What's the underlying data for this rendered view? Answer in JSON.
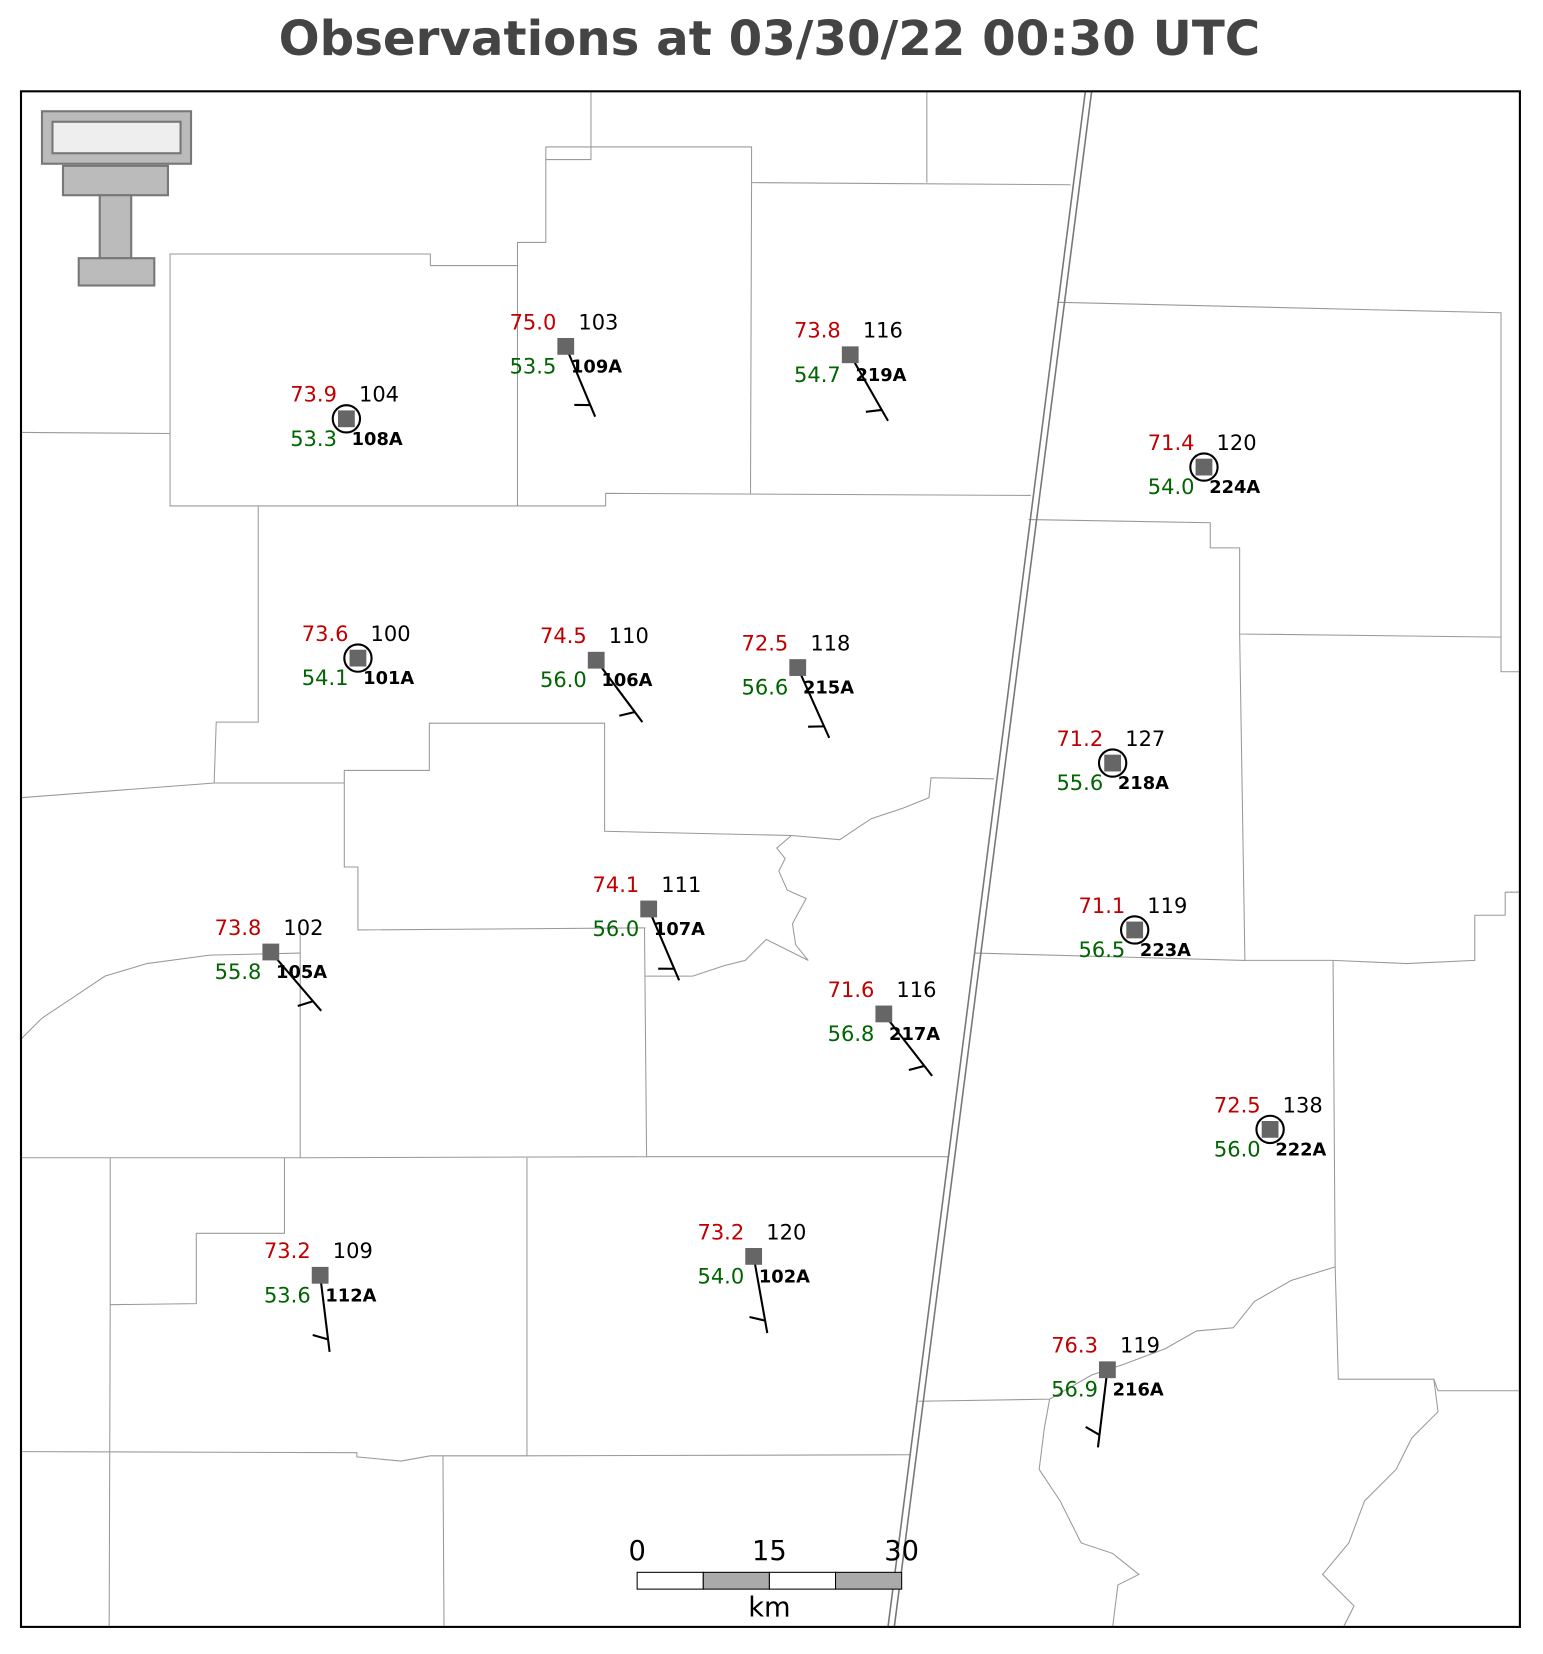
{
  "title": "Observations at 03/30/22 00:30 UTC",
  "stations": [
    {
      "id": "108A",
      "temperature": "73.9",
      "dewpoint": "53.3",
      "value": "104"
    },
    {
      "id": "109A",
      "temperature": "75.0",
      "dewpoint": "53.5",
      "value": "103"
    },
    {
      "id": "219A",
      "temperature": "73.8",
      "dewpoint": "54.7",
      "value": "116"
    },
    {
      "id": "224A",
      "temperature": "71.4",
      "dewpoint": "54.0",
      "value": "120"
    },
    {
      "id": "101A",
      "temperature": "73.6",
      "dewpoint": "54.1",
      "value": "100"
    },
    {
      "id": "106A",
      "temperature": "74.5",
      "dewpoint": "56.0",
      "value": "110"
    },
    {
      "id": "215A",
      "temperature": "72.5",
      "dewpoint": "56.6",
      "value": "118"
    },
    {
      "id": "218A",
      "temperature": "71.2",
      "dewpoint": "55.6",
      "value": "127"
    },
    {
      "id": "223A",
      "temperature": "71.1",
      "dewpoint": "56.5",
      "value": "119"
    },
    {
      "id": "107A",
      "temperature": "74.1",
      "dewpoint": "56.0",
      "value": "111"
    },
    {
      "id": "105A",
      "temperature": "73.8",
      "dewpoint": "55.8",
      "value": "102"
    },
    {
      "id": "217A",
      "temperature": "71.6",
      "dewpoint": "56.8",
      "value": "116"
    },
    {
      "id": "222A",
      "temperature": "72.5",
      "dewpoint": "56.0",
      "value": "138"
    },
    {
      "id": "112A",
      "temperature": "73.2",
      "dewpoint": "53.6",
      "value": "109"
    },
    {
      "id": "102A",
      "temperature": "73.2",
      "dewpoint": "54.0",
      "value": "120"
    },
    {
      "id": "216A",
      "temperature": "76.3",
      "dewpoint": "56.9",
      "value": "119"
    }
  ],
  "scale_bar": {
    "ticks": [
      "0",
      "15",
      "30"
    ],
    "unit": "km"
  }
}
